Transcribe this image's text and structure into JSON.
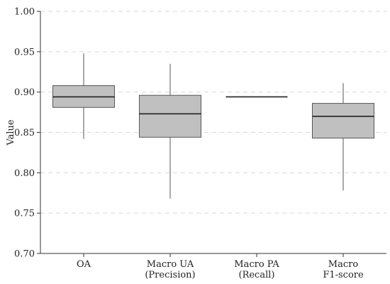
{
  "chart_data": {
    "type": "box",
    "ylabel": "Value",
    "ylim": [
      0.7,
      1.0
    ],
    "yticks": [
      "0.70",
      "0.75",
      "0.80",
      "0.85",
      "0.90",
      "0.95",
      "1.00"
    ],
    "grid": "horizontal-dashed",
    "box_color": "#c0c0c0",
    "line_color": "#555555",
    "categories": [
      {
        "lines": [
          "OA"
        ],
        "min": 0.842,
        "q1": 0.881,
        "median": 0.894,
        "q3": 0.908,
        "max": 0.948
      },
      {
        "lines": [
          "Macro UA",
          "(Precision)"
        ],
        "min": 0.768,
        "q1": 0.844,
        "median": 0.873,
        "q3": 0.896,
        "max": 0.935
      },
      {
        "lines": [
          "Macro PA",
          "(Recall)"
        ],
        "min": 0.894,
        "q1": 0.894,
        "median": 0.894,
        "q3": 0.894,
        "max": 0.894
      },
      {
        "lines": [
          "Macro",
          "F1-score"
        ],
        "min": 0.778,
        "q1": 0.843,
        "median": 0.87,
        "q3": 0.886,
        "max": 0.911
      }
    ]
  }
}
